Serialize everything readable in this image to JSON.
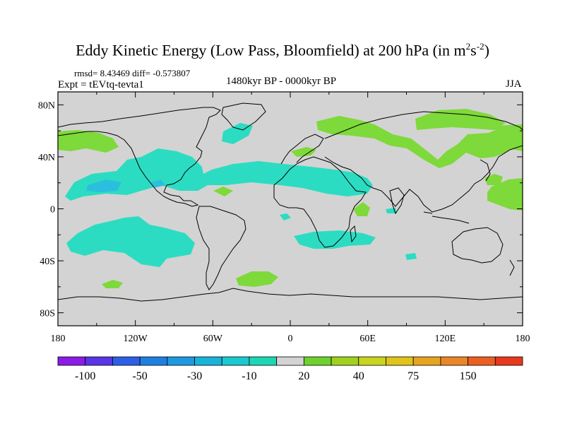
{
  "title": {
    "main": "Eddy Kinetic Energy (Low Pass, Bloomfield) at 200 hPa (in m",
    "sup1": "2",
    "mid": "s",
    "sup2": "-2",
    "end": ")"
  },
  "stats": "rmsd= 8.43469 diff= -0.573807",
  "experiment": "Expt = tEVtq-tevta1",
  "period": "1480kyr BP - 0000kyr BP",
  "season": "JJA",
  "lat_ticks": [
    "80N",
    "40N",
    "0",
    "40S",
    "80S"
  ],
  "lat_values": [
    80,
    40,
    0,
    -40,
    -80
  ],
  "lon_ticks": [
    "180",
    "120W",
    "60W",
    "0",
    "60E",
    "120E",
    "180"
  ],
  "lon_values": [
    -180,
    -120,
    -60,
    0,
    60,
    120,
    180
  ],
  "colorbar": {
    "colors": [
      "#8a1ce6",
      "#5a35e6",
      "#2d5fe6",
      "#1e7fe0",
      "#1e99e0",
      "#19b3d9",
      "#19c9cf",
      "#1ed6b4",
      "#d3d3d3",
      "#6ed12d",
      "#9fd11e",
      "#c8d41e",
      "#e0c41a",
      "#e6a51e",
      "#ea8628",
      "#ec5f23",
      "#e8381e"
    ],
    "labels": [
      "-100",
      "-50",
      "-30",
      "-10",
      "20",
      "40",
      "75",
      "150"
    ],
    "label_after_box": [
      1,
      3,
      5,
      7,
      9,
      11,
      13,
      15
    ]
  },
  "colors": {
    "background": "#d3d3d3",
    "positive": "#7ed93a",
    "negative": "#2cdcc2",
    "strong_negative": "#2ac0dd",
    "coast": "#000000"
  }
}
